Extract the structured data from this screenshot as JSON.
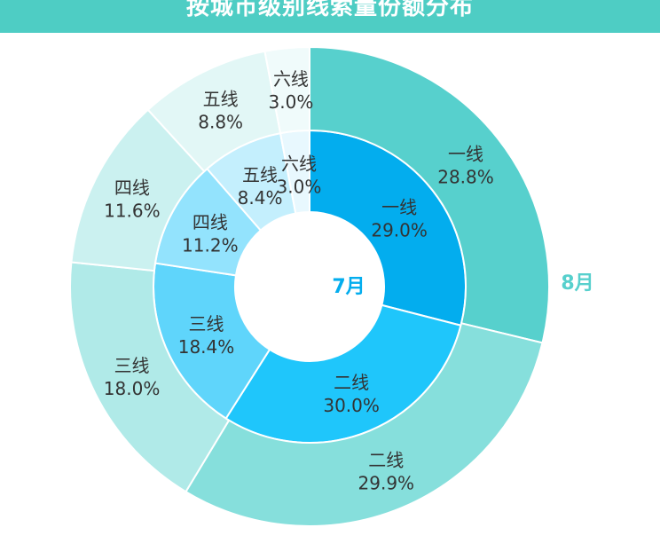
{
  "header": {
    "title": "按城市级别线索量份额分布"
  },
  "chart_data": {
    "type": "pie",
    "title": "按城市级别线索量份额分布",
    "series": [
      {
        "name": "7月",
        "categories": [
          "一线",
          "二线",
          "三线",
          "四线",
          "五线",
          "六线"
        ],
        "values": [
          29.0,
          30.0,
          18.4,
          11.2,
          8.4,
          3.0
        ],
        "labels": [
          "29.0%",
          "30.0%",
          "18.4%",
          "11.2%",
          "8.4%",
          "3.0%"
        ],
        "colors": [
          "#03adee",
          "#1fc6fb",
          "#5fd5fb",
          "#93e3fd",
          "#c4effd",
          "#e8f8fe"
        ]
      },
      {
        "name": "8月",
        "categories": [
          "一线",
          "二线",
          "三线",
          "四线",
          "五线",
          "六线"
        ],
        "values": [
          28.8,
          29.9,
          18.0,
          11.6,
          8.8,
          3.0
        ],
        "labels": [
          "28.8%",
          "29.9%",
          "18.0%",
          "11.6%",
          "8.8%",
          "3.0%"
        ],
        "colors": [
          "#57d0cd",
          "#86dfdc",
          "#b0eae8",
          "#cbf1f0",
          "#e2f7f6",
          "#f0fbfb"
        ]
      }
    ],
    "ring_label_colors": [
      "#03adee",
      "#57d0cd"
    ]
  }
}
